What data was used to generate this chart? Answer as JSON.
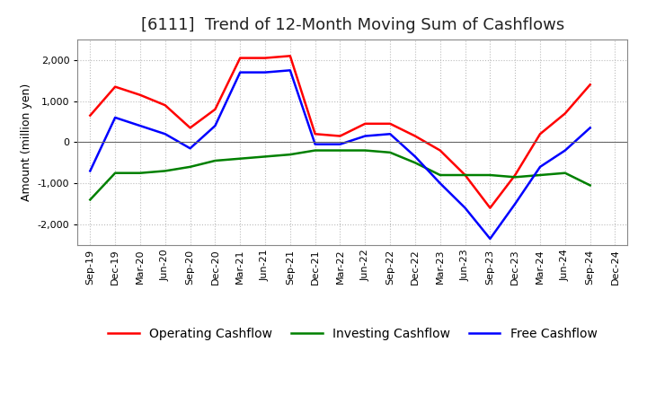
{
  "title": "[6111]  Trend of 12-Month Moving Sum of Cashflows",
  "ylabel": "Amount (million yen)",
  "x_labels": [
    "Sep-19",
    "Dec-19",
    "Mar-20",
    "Jun-20",
    "Sep-20",
    "Dec-20",
    "Mar-21",
    "Jun-21",
    "Sep-21",
    "Dec-21",
    "Mar-22",
    "Jun-22",
    "Sep-22",
    "Dec-22",
    "Mar-23",
    "Jun-23",
    "Sep-23",
    "Dec-23",
    "Mar-24",
    "Jun-24",
    "Sep-24",
    "Dec-24"
  ],
  "operating_cashflow": [
    650,
    1350,
    1150,
    900,
    350,
    800,
    2050,
    2050,
    2100,
    200,
    150,
    450,
    450,
    150,
    -200,
    -800,
    -1600,
    -800,
    200,
    700,
    1400,
    null
  ],
  "investing_cashflow": [
    -1400,
    -750,
    -750,
    -700,
    -600,
    -450,
    -400,
    -350,
    -300,
    -200,
    -200,
    -200,
    -250,
    -500,
    -800,
    -800,
    -800,
    -850,
    -800,
    -750,
    -1050,
    null
  ],
  "free_cashflow": [
    -700,
    600,
    400,
    200,
    -150,
    400,
    1700,
    1700,
    1750,
    -50,
    -50,
    150,
    200,
    -350,
    -1000,
    -1600,
    -2350,
    -1500,
    -600,
    -200,
    350,
    null
  ],
  "operating_color": "#ff0000",
  "investing_color": "#008000",
  "free_color": "#0000ff",
  "ylim": [
    -2500,
    2500
  ],
  "yticks": [
    -2000,
    -1000,
    0,
    1000,
    2000
  ],
  "background_color": "#ffffff",
  "grid_color": "#bbbbbb",
  "title_fontsize": 13,
  "axis_fontsize": 9,
  "tick_fontsize": 8,
  "legend_fontsize": 10
}
